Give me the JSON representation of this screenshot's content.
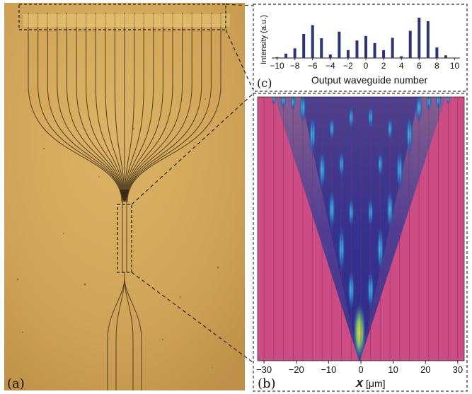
{
  "panels": {
    "a": "(a)",
    "b": "(b)",
    "c": "(c)"
  },
  "colors": {
    "micro_bg": "#d2a75a",
    "waveguide": "#5f4828",
    "heatmap_bg": "#cc4c86",
    "bar": "#2b3474",
    "box": "#333333"
  },
  "chart_data": [
    {
      "type": "bar",
      "title": "",
      "xlabel": "Output waveguide number",
      "ylabel": "Intensity (a.u.)",
      "x": [
        -10,
        -9,
        -8,
        -7,
        -6,
        -5,
        -4,
        -3,
        -2,
        -1,
        0,
        1,
        2,
        3,
        4,
        5,
        6,
        7,
        8,
        9,
        10
      ],
      "values": [
        0.02,
        0.1,
        0.22,
        0.55,
        0.75,
        0.45,
        0.08,
        0.6,
        0.18,
        0.4,
        0.5,
        0.34,
        0.18,
        0.46,
        0.04,
        0.62,
        0.92,
        0.84,
        0.24,
        0.06,
        0.0
      ],
      "xticks": [
        "-10",
        "-8",
        "-6",
        "-4",
        "-2",
        "0",
        "2",
        "4",
        "6",
        "8",
        "10"
      ],
      "xlim": [
        -10.6,
        10.6
      ],
      "ylim": [
        0,
        1
      ]
    },
    {
      "type": "heatmap",
      "xlabel_var": "X",
      "xlabel_unit": "[μm]",
      "xticks": [
        "-30",
        "-20",
        "-10",
        "0",
        "10",
        "20",
        "30"
      ],
      "xlim": [
        -32,
        32
      ],
      "waveguide_positions": [
        -30,
        -27,
        -24,
        -21,
        -18,
        -15,
        -12,
        -9,
        -6,
        -3,
        0,
        3,
        6,
        9,
        12,
        15,
        18,
        21,
        24,
        27,
        30
      ]
    }
  ]
}
